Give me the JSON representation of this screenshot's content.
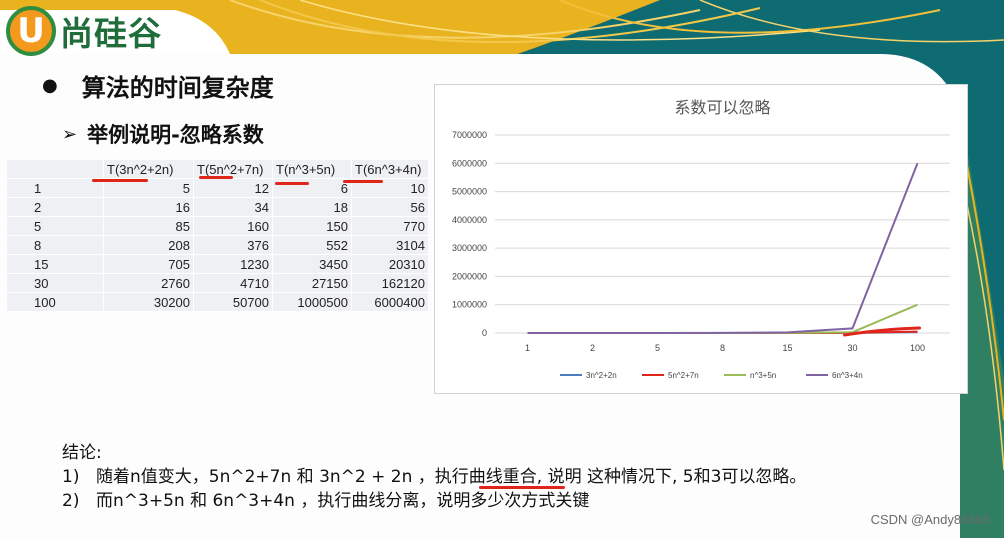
{
  "logo": {
    "mark": "U",
    "text": "尚硅谷"
  },
  "slide": {
    "heading": "算法的时间复杂度",
    "subheading": "举例说明-忽略系数"
  },
  "table": {
    "headers": [
      "",
      "T(3n^2+2n)",
      "T(5n^2+7n)",
      "T(n^3+5n)",
      "T(6n^3+4n)"
    ],
    "rows": [
      [
        "1",
        "5",
        "12",
        "6",
        "10"
      ],
      [
        "2",
        "16",
        "34",
        "18",
        "56"
      ],
      [
        "5",
        "85",
        "160",
        "150",
        "770"
      ],
      [
        "8",
        "208",
        "376",
        "552",
        "3104"
      ],
      [
        "15",
        "705",
        "1230",
        "3450",
        "20310"
      ],
      [
        "30",
        "2760",
        "4710",
        "27150",
        "162120"
      ],
      [
        "100",
        "30200",
        "50700",
        "1000500",
        "6000400"
      ]
    ]
  },
  "chart_data": {
    "type": "line",
    "title": "系数可以忽略",
    "categories": [
      "1",
      "2",
      "5",
      "8",
      "15",
      "30",
      "100"
    ],
    "ylim": [
      0,
      7000000
    ],
    "yticks": [
      "0",
      "1000000",
      "2000000",
      "3000000",
      "4000000",
      "5000000",
      "6000000",
      "7000000"
    ],
    "grid": true,
    "legend_position": "bottom",
    "series": [
      {
        "name": "3n^2+2n",
        "color": "#4a7ebb",
        "values": [
          5,
          16,
          85,
          208,
          705,
          2760,
          30200
        ]
      },
      {
        "name": "5n^2+7n",
        "color": "#e0261b",
        "values": [
          12,
          34,
          160,
          376,
          1230,
          4710,
          50700
        ]
      },
      {
        "name": "n^3+5n",
        "color": "#9bbb59",
        "values": [
          6,
          18,
          150,
          552,
          3450,
          27150,
          1000500
        ]
      },
      {
        "name": "6n^3+4n",
        "color": "#8064a2",
        "values": [
          10,
          56,
          770,
          3104,
          20310,
          162120,
          6000400
        ]
      }
    ]
  },
  "conclusion": {
    "title": "结论:",
    "items": [
      {
        "index": "1)",
        "text": "随着n值变大，5n^2+7n 和 3n^2 + 2n ，执行曲线重合, 说明 这种情况下, 5和3可以忽略。"
      },
      {
        "index": "2)",
        "text": "而n^3+5n 和 6n^3+4n ，执行曲线分离，说明多少次方式关键"
      }
    ]
  },
  "watermark": "CSDN @Andy86666"
}
